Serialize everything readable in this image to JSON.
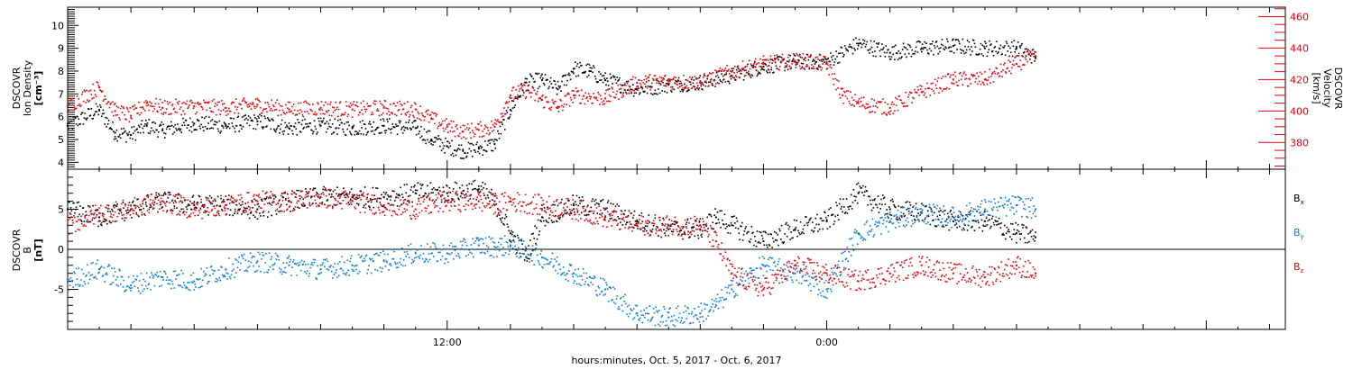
{
  "chart_data": [
    {
      "type": "scatter",
      "panel": "plasma",
      "xlabel": "hours:minutes, Oct. 5, 2017 - Oct. 6, 2017",
      "x_ticks": [
        {
          "hour": 12,
          "label": "12:00"
        },
        {
          "hour": 24,
          "label": "0:00"
        }
      ],
      "xlim_hours": [
        0,
        38.5
      ],
      "data_end_hour": 30.6,
      "left_axis": {
        "label_lines": [
          "DSCOVR",
          "Ion Density",
          "[cm⁻³]"
        ],
        "ylim": [
          3.7,
          10.8
        ],
        "ticks": [
          4,
          5,
          6,
          7,
          8,
          9,
          10
        ],
        "color": "#000000"
      },
      "right_axis": {
        "label_lines": [
          "DSCOVR",
          "Velocity",
          "[km/s]"
        ],
        "ylim": [
          363,
          466
        ],
        "ticks": [
          380,
          400,
          420,
          440,
          460
        ],
        "color": "#e8000b"
      },
      "series": [
        {
          "axis": "left",
          "color": "#000000",
          "points": [
            [
              0,
              5.6
            ],
            [
              1,
              6.3
            ],
            [
              1.5,
              5.3
            ],
            [
              2,
              5.2
            ],
            [
              2.5,
              5.6
            ],
            [
              3,
              5.4
            ],
            [
              4,
              5.7
            ],
            [
              5,
              5.6
            ],
            [
              6,
              5.8
            ],
            [
              7,
              5.5
            ],
            [
              8,
              5.6
            ],
            [
              9,
              5.5
            ],
            [
              10,
              5.6
            ],
            [
              11,
              5.5
            ],
            [
              11.5,
              5.0
            ],
            [
              12,
              4.7
            ],
            [
              12.5,
              4.5
            ],
            [
              13,
              4.6
            ],
            [
              13.5,
              4.8
            ],
            [
              14,
              6.3
            ],
            [
              14.5,
              7.5
            ],
            [
              15,
              7.6
            ],
            [
              15.5,
              7.2
            ],
            [
              16,
              8.1
            ],
            [
              16.5,
              8.0
            ],
            [
              17,
              7.6
            ],
            [
              18,
              7.2
            ],
            [
              19,
              7.4
            ],
            [
              20,
              7.5
            ],
            [
              21,
              7.8
            ],
            [
              22,
              8.2
            ],
            [
              23,
              8.4
            ],
            [
              24,
              8.4
            ],
            [
              25,
              9.2
            ],
            [
              26,
              8.8
            ],
            [
              27,
              9.0
            ],
            [
              28,
              9.1
            ],
            [
              29,
              9.0
            ],
            [
              30,
              9.0
            ],
            [
              30.6,
              8.6
            ]
          ]
        },
        {
          "axis": "right",
          "color": "#e8000b",
          "points": [
            [
              0,
              403
            ],
            [
              1,
              415
            ],
            [
              1.5,
              400
            ],
            [
              2,
              397
            ],
            [
              2.5,
              405
            ],
            [
              3,
              402
            ],
            [
              4,
              403
            ],
            [
              5,
              402
            ],
            [
              6,
              404
            ],
            [
              7,
              401
            ],
            [
              8,
              402
            ],
            [
              9,
              401
            ],
            [
              10,
              402
            ],
            [
              11,
              401
            ],
            [
              11.5,
              395
            ],
            [
              12,
              390
            ],
            [
              12.5,
              387
            ],
            [
              13,
              388
            ],
            [
              13.5,
              390
            ],
            [
              14,
              410
            ],
            [
              14.5,
              413
            ],
            [
              15,
              407
            ],
            [
              15.5,
              402
            ],
            [
              16,
              410
            ],
            [
              17,
              408
            ],
            [
              18,
              418
            ],
            [
              19,
              419
            ],
            [
              20,
              418
            ],
            [
              21,
              425
            ],
            [
              22,
              430
            ],
            [
              23,
              432
            ],
            [
              24,
              430
            ],
            [
              24.5,
              410
            ],
            [
              25,
              405
            ],
            [
              26,
              402
            ],
            [
              27,
              412
            ],
            [
              28,
              420
            ],
            [
              29,
              420
            ],
            [
              30,
              430
            ],
            [
              30.6,
              435
            ]
          ]
        }
      ]
    },
    {
      "type": "scatter",
      "panel": "magnetic-field",
      "xlim_hours": [
        0,
        38.5
      ],
      "left_axis": {
        "label_lines": [
          "DSCOVR",
          "B",
          "[nT]"
        ],
        "ylim": [
          -10,
          10
        ],
        "ticks": [
          -5,
          0,
          5
        ],
        "color": "#000000",
        "zero_line": true
      },
      "series": [
        {
          "name": "Bx",
          "label_main": "B",
          "label_sub": "x",
          "color": "#000000",
          "points": [
            [
              0,
              5.0
            ],
            [
              1,
              4.0
            ],
            [
              2,
              5.0
            ],
            [
              3,
              6.0
            ],
            [
              4,
              5.5
            ],
            [
              5,
              5.5
            ],
            [
              6,
              5.0
            ],
            [
              7,
              6.0
            ],
            [
              8,
              6.5
            ],
            [
              9,
              6.5
            ],
            [
              10,
              6.5
            ],
            [
              11,
              7.0
            ],
            [
              12,
              7.0
            ],
            [
              13,
              7.5
            ],
            [
              13.5,
              6.0
            ],
            [
              14,
              2.0
            ],
            [
              14.5,
              -1.0
            ],
            [
              15,
              4.0
            ],
            [
              16,
              5.5
            ],
            [
              17,
              5.0
            ],
            [
              18,
              3.5
            ],
            [
              19,
              2.5
            ],
            [
              20,
              2.5
            ],
            [
              20.5,
              4.0
            ],
            [
              21,
              3.0
            ],
            [
              22,
              1.0
            ],
            [
              23,
              2.5
            ],
            [
              24,
              3.5
            ],
            [
              25,
              7.0
            ],
            [
              26,
              5.0
            ],
            [
              27,
              4.5
            ],
            [
              28,
              3.5
            ],
            [
              29,
              3.5
            ],
            [
              30,
              2.0
            ],
            [
              30.6,
              1.5
            ]
          ]
        },
        {
          "name": "By",
          "label_main": "B",
          "label_sub": "y",
          "color": "#0a7bd6",
          "points": [
            [
              0,
              -4.0
            ],
            [
              1,
              -2.5
            ],
            [
              2,
              -4.5
            ],
            [
              3,
              -3.5
            ],
            [
              4,
              -4.0
            ],
            [
              5,
              -2.5
            ],
            [
              6,
              -1.5
            ],
            [
              7,
              -2.0
            ],
            [
              8,
              -2.5
            ],
            [
              9,
              -2.0
            ],
            [
              10,
              -1.5
            ],
            [
              11,
              -0.5
            ],
            [
              12,
              -0.5
            ],
            [
              13,
              0.5
            ],
            [
              13.5,
              0.3
            ],
            [
              14,
              0.5
            ],
            [
              15,
              -1.0
            ],
            [
              16,
              -3.0
            ],
            [
              17,
              -5.0
            ],
            [
              18,
              -8.0
            ],
            [
              19,
              -8.5
            ],
            [
              20,
              -8.0
            ],
            [
              20.5,
              -7.0
            ],
            [
              21,
              -5.0
            ],
            [
              22,
              -2.0
            ],
            [
              23,
              -3.0
            ],
            [
              24,
              -5.0
            ],
            [
              25,
              2.0
            ],
            [
              26,
              3.5
            ],
            [
              27,
              4.5
            ],
            [
              28,
              4.0
            ],
            [
              29,
              5.0
            ],
            [
              30,
              5.5
            ],
            [
              30.6,
              5.0
            ]
          ]
        },
        {
          "name": "Bz",
          "label_main": "B",
          "label_sub": "z",
          "color": "#e8000b",
          "points": [
            [
              0,
              3.0
            ],
            [
              1,
              4.5
            ],
            [
              2,
              5.0
            ],
            [
              3,
              6.0
            ],
            [
              4,
              5.0
            ],
            [
              5,
              5.5
            ],
            [
              6,
              6.0
            ],
            [
              7,
              6.0
            ],
            [
              8,
              6.5
            ],
            [
              9,
              6.0
            ],
            [
              10,
              5.5
            ],
            [
              11,
              5.0
            ],
            [
              12,
              6.0
            ],
            [
              13,
              6.0
            ],
            [
              13.5,
              5.5
            ],
            [
              14,
              6.0
            ],
            [
              15,
              5.5
            ],
            [
              16,
              5.0
            ],
            [
              17,
              4.0
            ],
            [
              18,
              3.0
            ],
            [
              19,
              3.0
            ],
            [
              20,
              3.0
            ],
            [
              20.5,
              1.0
            ],
            [
              21,
              -3.0
            ],
            [
              22,
              -5.0
            ],
            [
              23,
              -2.0
            ],
            [
              24,
              -3.0
            ],
            [
              25,
              -4.0
            ],
            [
              26,
              -3.0
            ],
            [
              27,
              -2.0
            ],
            [
              28,
              -3.0
            ],
            [
              29,
              -3.5
            ],
            [
              30,
              -2.0
            ],
            [
              30.6,
              -3.0
            ]
          ]
        }
      ]
    }
  ]
}
